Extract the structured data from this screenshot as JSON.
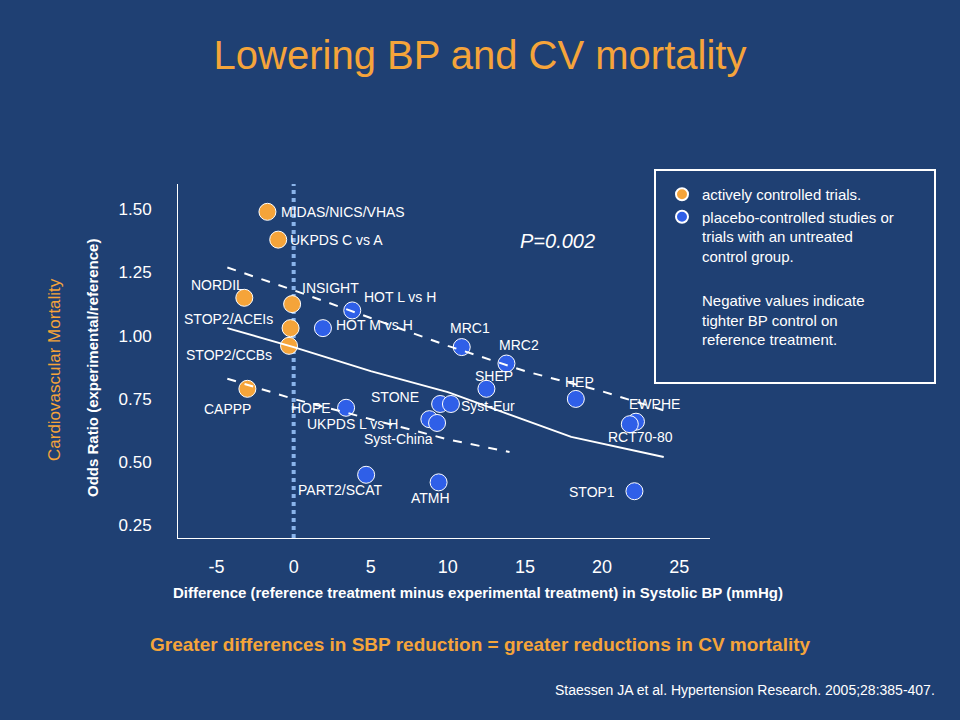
{
  "chart_data": {
    "type": "scatter",
    "title": "Lowering BP and CV mortality",
    "side_label": "Cardiovascular Mortality",
    "ylabel": "Odds Ratio (experimental/reference)",
    "xlabel": "Difference (reference treatment minus experimental treatment) in Systolic BP (mmHg)",
    "annotations": [
      {
        "text": "P=0.002",
        "x": 17.1,
        "y": 1.374
      }
    ],
    "note": "Negative values indicate tighter BP control on reference treatment.",
    "caption": "Greater differences in SBP reduction = greater reductions in CV mortality",
    "source": "Staessen JA et al. Hypertension Research. 2005;28:385-407.",
    "reference_x": 0,
    "series": [
      {
        "name": "actively controlled trials.",
        "color": "#f5a43a",
        "marker": "circle",
        "labels": [
          "MIDAS/NICS/VHAS",
          "UKPDS C vs A",
          "NORDIL",
          "INSIGHT",
          "STOP2/ACEIs",
          "STOP2/CCBs",
          "CAPPP"
        ],
        "x": [
          -1.7,
          -1.0,
          -3.2,
          -0.1,
          -0.2,
          -0.3,
          -3.0
        ],
        "values": [
          1.49,
          1.38,
          1.15,
          1.125,
          1.03,
          0.96,
          0.79
        ]
      },
      {
        "name": "placebo-controlled studies or trials with an untreated control group.",
        "color": "#2f5fe8",
        "marker": "circle",
        "labels": [
          "HOT L vs H",
          "HOT M vs H",
          "MRC1",
          "MRC2",
          "SHEP",
          "STONE",
          "Syst-Eur",
          "HEP",
          "HOPE",
          "UKPDS L vs H",
          "Syst-China",
          "EWPHE",
          "RCT70-80",
          "PART2/SCAT",
          "ATMH",
          "STOP1"
        ],
        "x": [
          3.8,
          1.9,
          10.9,
          13.8,
          12.5,
          9.5,
          10.2,
          18.3,
          3.4,
          8.8,
          9.3,
          22.2,
          21.8,
          4.7,
          9.4,
          22.1
        ],
        "values": [
          1.1,
          1.03,
          0.955,
          0.89,
          0.79,
          0.73,
          0.73,
          0.75,
          0.715,
          0.67,
          0.655,
          0.66,
          0.65,
          0.45,
          0.42,
          0.385
        ]
      },
      {
        "type": "line",
        "color": "#ffffff",
        "line_style": "solid",
        "x": [
          -4.3,
          0,
          5,
          10,
          15,
          18,
          24
        ],
        "values": [
          1.03,
          0.955,
          0.86,
          0.777,
          0.666,
          0.6,
          0.52
        ]
      },
      {
        "type": "line",
        "color": "#ffffff",
        "line_style": "dashed",
        "x": [
          -4.3,
          0,
          5,
          10,
          15,
          20,
          24
        ],
        "values": [
          1.27,
          1.18,
          1.07,
          0.96,
          0.86,
          0.78,
          0.705
        ]
      },
      {
        "type": "line",
        "color": "#ffffff",
        "line_style": "dashed",
        "x": [
          -4.3,
          0,
          5,
          10,
          14
        ],
        "values": [
          0.83,
          0.75,
          0.67,
          0.59,
          0.54
        ]
      }
    ],
    "xlim": [
      -7.5,
      27
    ],
    "xticks": [
      -5,
      0,
      5,
      10,
      15,
      20,
      25
    ],
    "ylim": [
      0.2,
      1.6
    ],
    "yticks": [
      0.25,
      {
        "value": 0.5,
        "label": "0.50"
      },
      0.75,
      {
        "value": 1,
        "label": "1.00"
      },
      1.25,
      {
        "value": 1.5,
        "label": "1.50"
      }
    ],
    "grid": false,
    "legend": "top right"
  }
}
